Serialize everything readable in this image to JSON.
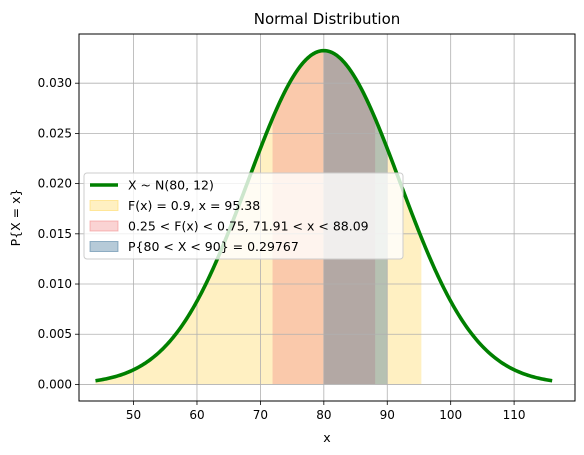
{
  "chart_data": {
    "type": "area",
    "title": "Normal Distribution",
    "xlabel": "x",
    "ylabel": "P{X = x}",
    "mu": 80,
    "sigma": 12,
    "xlim": [
      41.4,
      119.6
    ],
    "ylim": [
      -0.00165,
      0.0349
    ],
    "x_range": [
      44,
      116
    ],
    "x_ticks": [
      50,
      60,
      70,
      80,
      90,
      100,
      110
    ],
    "x_tick_labels": [
      "50",
      "60",
      "70",
      "80",
      "90",
      "100",
      "110"
    ],
    "y_ticks": [
      0.0,
      0.005,
      0.01,
      0.015,
      0.02,
      0.025,
      0.03
    ],
    "y_tick_labels": [
      "0.000",
      "0.005",
      "0.010",
      "0.015",
      "0.020",
      "0.025",
      "0.030"
    ],
    "grid": true,
    "legend_placement": "center-left",
    "series": [
      {
        "kind": "line",
        "name": "X ~ N(80, 12)",
        "color": "#008000"
      },
      {
        "kind": "fill",
        "name": "F(x) = 0.9, x = 95.38",
        "from": 44,
        "to": 95.38,
        "color": "#ffd54f",
        "alpha": 0.35
      },
      {
        "kind": "fill",
        "name": "0.25 < F(x) < 0.75, 71.91 < x < 88.09",
        "from": 71.91,
        "to": 88.09,
        "color": "#f08080",
        "alpha": 0.35
      },
      {
        "kind": "fill",
        "name": "P{80 < X < 90} = 0.29767",
        "from": 80,
        "to": 90,
        "color": "#3f7398",
        "alpha": 0.38
      }
    ]
  }
}
